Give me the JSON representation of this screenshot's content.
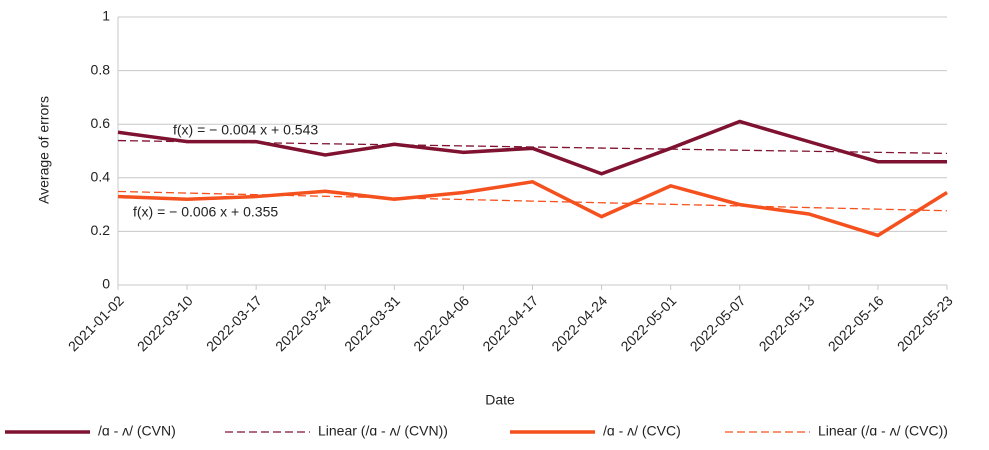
{
  "chart_data": {
    "type": "line",
    "x_label": "Date",
    "y_label": "Average of errors",
    "categories": [
      "2021-01-02",
      "2022-03-10",
      "2022-03-17",
      "2022-03-24",
      "2022-03-31",
      "2022-04-06",
      "2022-04-17",
      "2022-04-24",
      "2022-05-01",
      "2022-05-07",
      "2022-05-13",
      "2022-05-16",
      "2022-05-23"
    ],
    "series": [
      {
        "name": "/ɑ - ʌ/ (CVN)",
        "color": "#7f1230",
        "style": "solid",
        "values": [
          0.57,
          0.535,
          0.535,
          0.485,
          0.525,
          0.495,
          0.51,
          0.415,
          0.51,
          0.61,
          0.535,
          0.46,
          0.46
        ]
      },
      {
        "name": "Linear (/ɑ - ʌ/ (CVN))",
        "color": "#7f1230",
        "style": "dashed",
        "values": [
          0.539,
          0.535,
          0.531,
          0.527,
          0.523,
          0.519,
          0.515,
          0.511,
          0.507,
          0.503,
          0.499,
          0.495,
          0.491
        ]
      },
      {
        "name": "/ɑ - ʌ/ (CVC)",
        "color": "#f4511e",
        "style": "solid",
        "values": [
          0.33,
          0.32,
          0.33,
          0.35,
          0.32,
          0.345,
          0.385,
          0.255,
          0.37,
          0.3,
          0.265,
          0.185,
          0.345
        ]
      },
      {
        "name": "Linear (/ɑ - ʌ/ (CVC))",
        "color": "#f4511e",
        "style": "dashed",
        "values": [
          0.349,
          0.343,
          0.337,
          0.331,
          0.325,
          0.319,
          0.313,
          0.307,
          0.301,
          0.295,
          0.289,
          0.283,
          0.277
        ]
      }
    ],
    "annotations": [
      "f(x) = − 0.004 x + 0.543",
      "f(x) = − 0.006 x + 0.355"
    ],
    "ylim": [
      0,
      1
    ],
    "yticks": [
      0,
      0.2,
      0.4,
      0.6,
      0.8,
      1
    ],
    "grid": true,
    "legend": "bottom"
  }
}
